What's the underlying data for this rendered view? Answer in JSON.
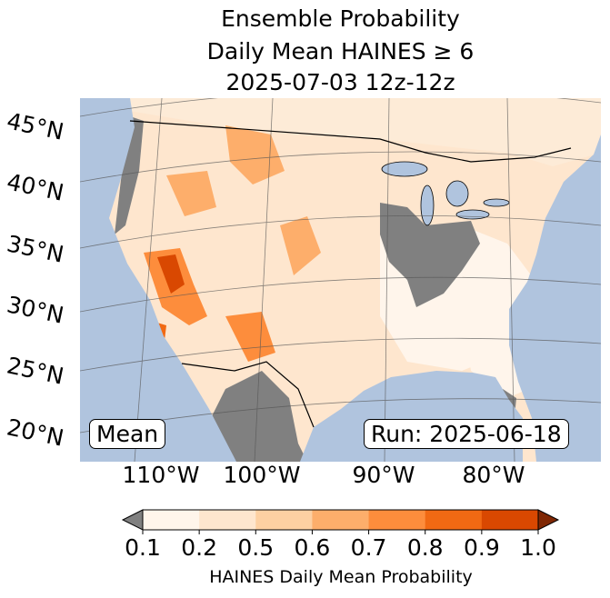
{
  "title": {
    "line1": "Ensemble Probability",
    "line2": "Daily Mean HAINES ≥ 6",
    "line3": "2025-07-03 12z-12z"
  },
  "map": {
    "lat_labels": [
      "45°N",
      "40°N",
      "35°N",
      "30°N",
      "25°N",
      "20°N"
    ],
    "lon_labels": [
      "110°W",
      "100°W",
      "90°W",
      "80°W"
    ],
    "ocean_color": "#b0c4de",
    "missing_color": "#808080",
    "stat_label": "Mean",
    "run_label": "Run: 2025-06-18"
  },
  "colorbar": {
    "ticks": [
      "0.1",
      "0.2",
      "0.5",
      "0.6",
      "0.7",
      "0.8",
      "0.9",
      "1.0"
    ],
    "colors": [
      "#fff5eb",
      "#fee6ce",
      "#fdd0a2",
      "#fdae6b",
      "#fd8d3c",
      "#f16913",
      "#d94801"
    ],
    "under_color": "#808080",
    "over_color": "#7f2704",
    "label": "HAINES Daily Mean Probability"
  }
}
